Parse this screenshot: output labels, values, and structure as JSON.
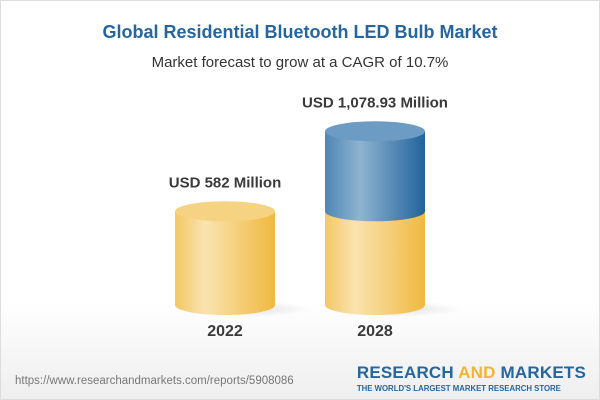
{
  "title": "Global Residential Bluetooth LED Bulb Market",
  "subtitle": "Market forecast to grow at a CAGR of 10.7%",
  "chart_data": {
    "type": "bar",
    "categories": [
      "2022",
      "2028"
    ],
    "values": [
      582,
      1078.93
    ],
    "data_labels": [
      "USD 582 Million",
      "USD 1,078.93 Million"
    ],
    "unit": "USD Million",
    "colors": {
      "base": "#f2c25a",
      "growth": "#3d78aa"
    }
  },
  "footer": {
    "url": "https://www.researchandmarkets.com/reports/5908086",
    "logo_part1": "RESEARCH ",
    "logo_part2": "AND",
    "logo_part3": " MARKETS",
    "tagline": "THE WORLD'S LARGEST MARKET RESEARCH STORE"
  }
}
